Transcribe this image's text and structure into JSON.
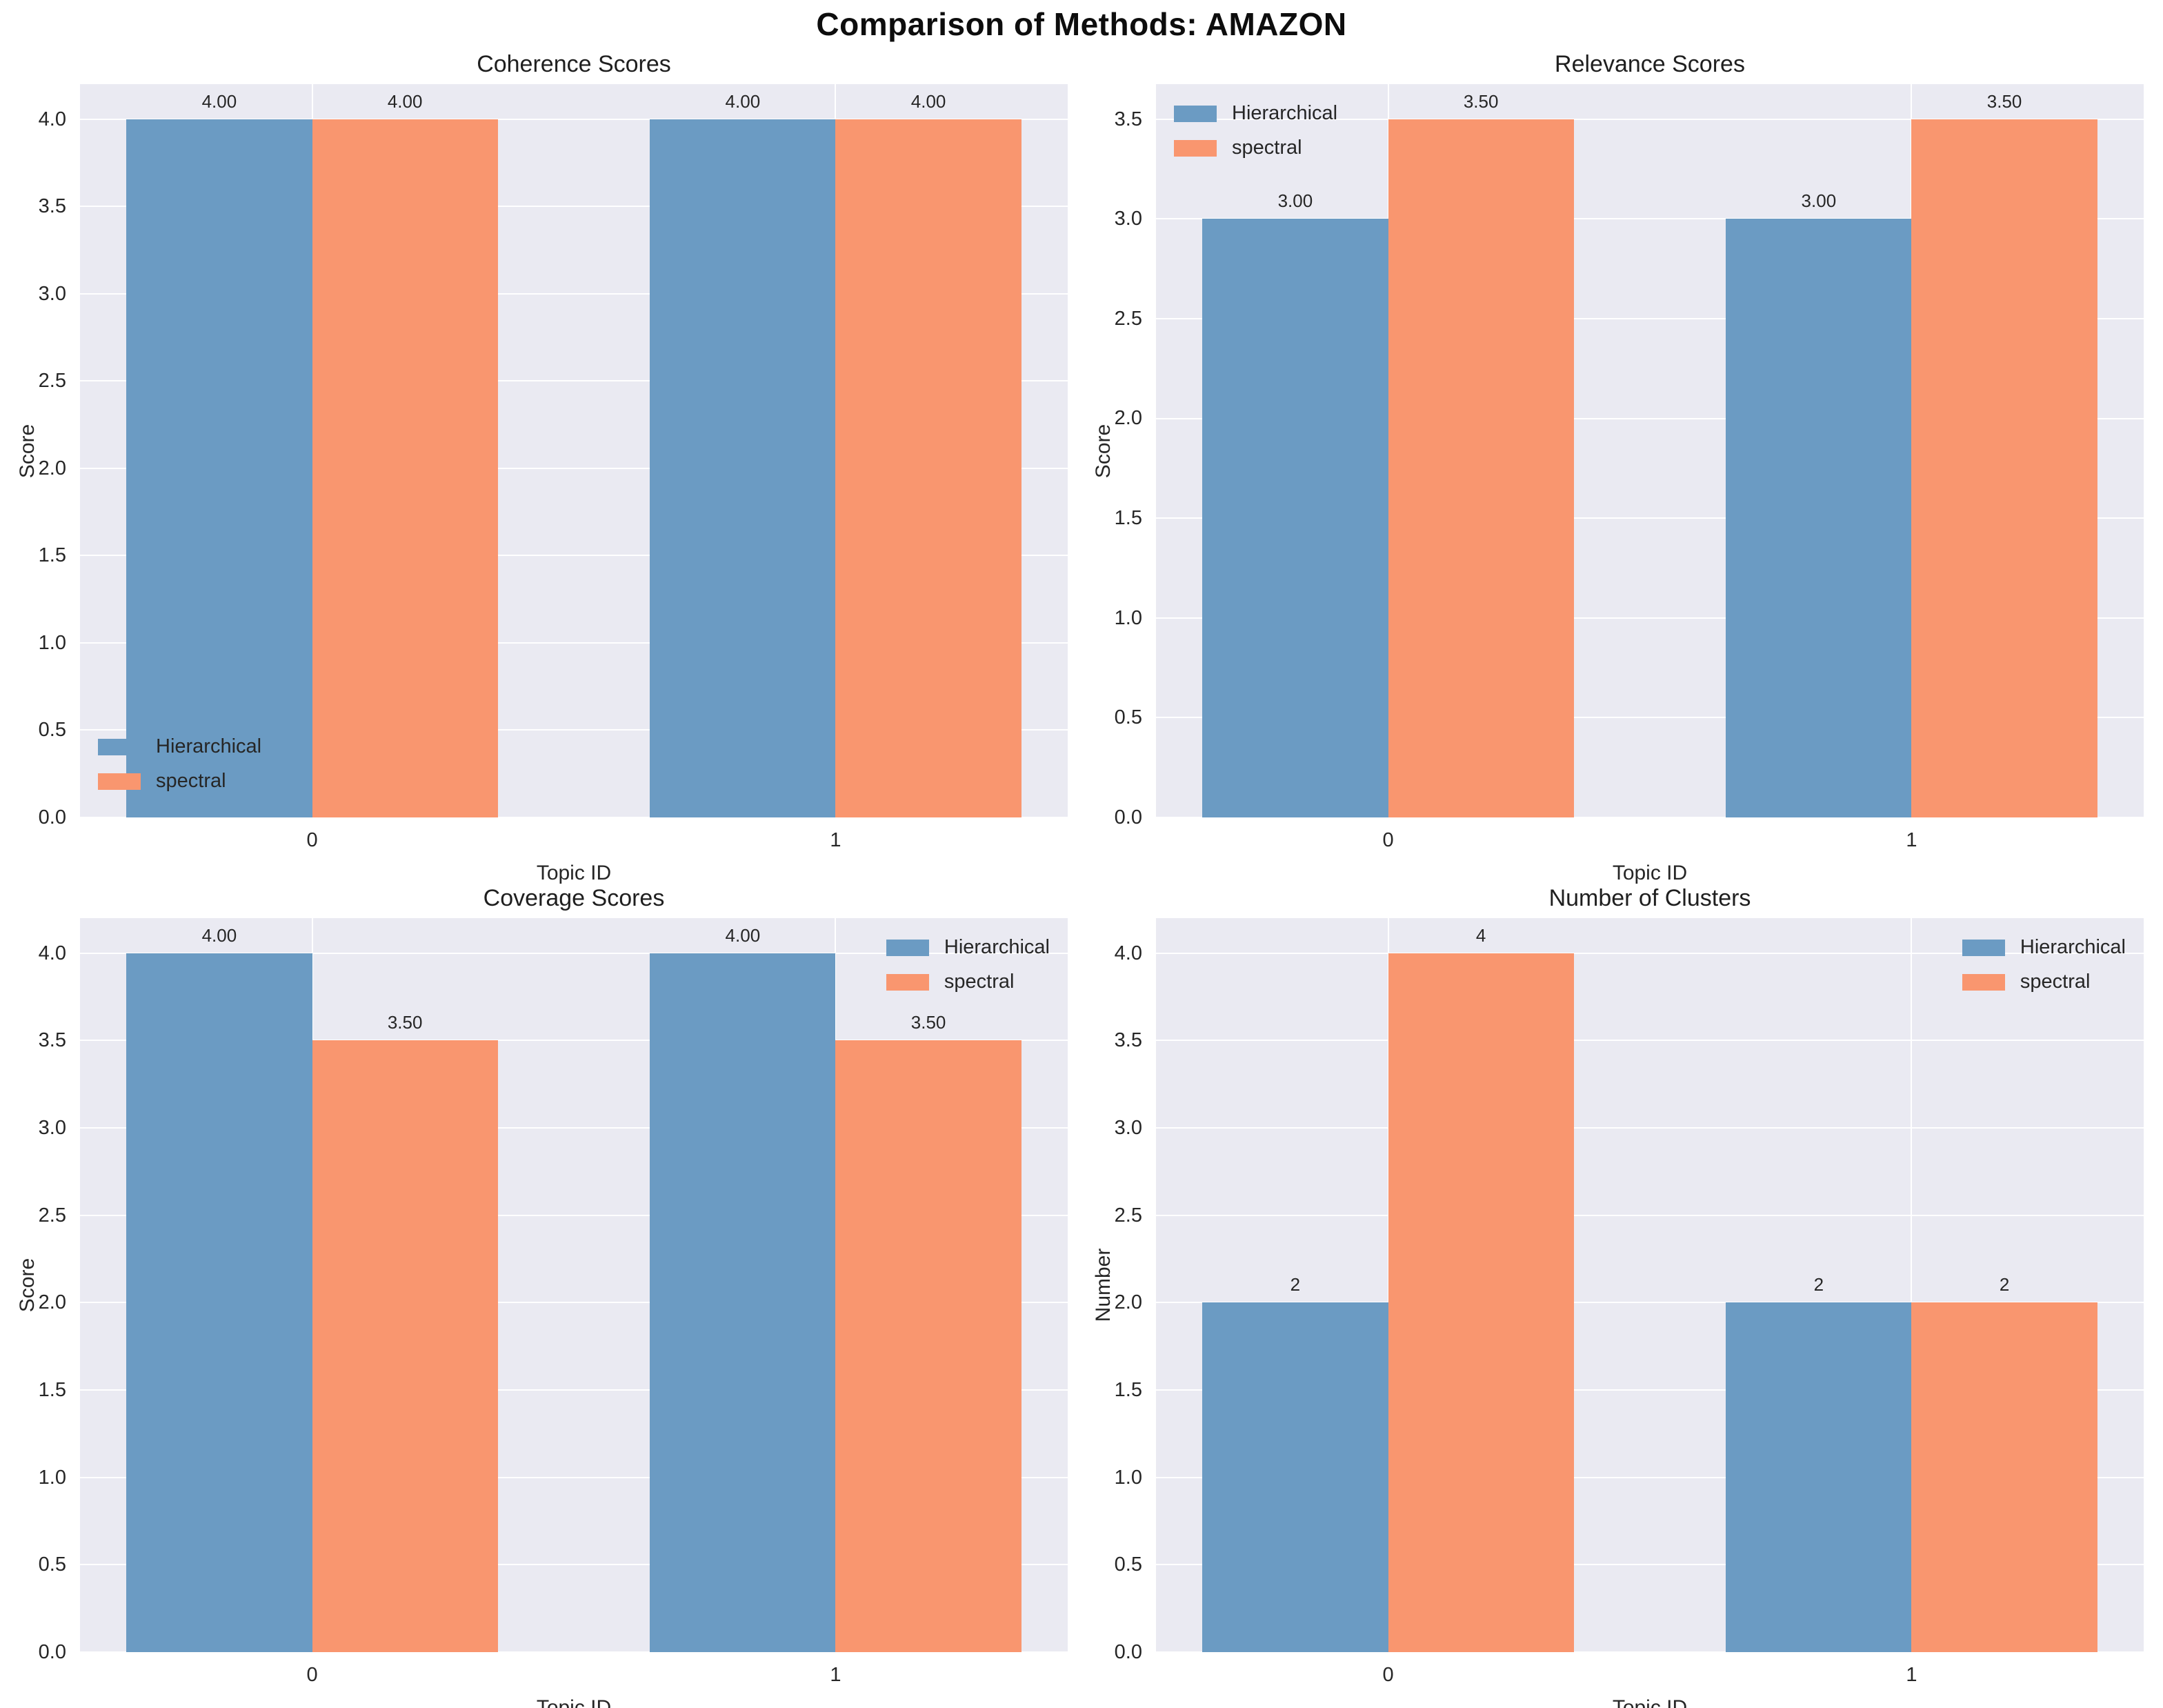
{
  "figure_title": "Comparison of Methods: AMAZON",
  "colors": {
    "hierarchical": "#6B9BC3",
    "spectral": "#F9966F",
    "plot_background": "#EAEAF2",
    "grid": "#FFFFFF",
    "text": "#262626"
  },
  "chart_data": [
    {
      "type": "bar",
      "title": "Coherence Scores",
      "xlabel": "Topic ID",
      "ylabel": "Score",
      "categories": [
        "0",
        "1"
      ],
      "series": [
        {
          "name": "Hierarchical",
          "values": [
            4.0,
            4.0
          ],
          "value_labels": [
            "4.00",
            "4.00"
          ]
        },
        {
          "name": "spectral",
          "values": [
            4.0,
            4.0
          ],
          "value_labels": [
            "4.00",
            "4.00"
          ]
        }
      ],
      "ylim": [
        0,
        4.2
      ],
      "yticks": [
        0.0,
        0.5,
        1.0,
        1.5,
        2.0,
        2.5,
        3.0,
        3.5,
        4.0
      ],
      "ytick_labels": [
        "0.0",
        "0.5",
        "1.0",
        "1.5",
        "2.0",
        "2.5",
        "3.0",
        "3.5",
        "4.0"
      ],
      "legend_loc": "lower left",
      "grid": true
    },
    {
      "type": "bar",
      "title": "Relevance Scores",
      "xlabel": "Topic ID",
      "ylabel": "Score",
      "categories": [
        "0",
        "1"
      ],
      "series": [
        {
          "name": "Hierarchical",
          "values": [
            3.0,
            3.0
          ],
          "value_labels": [
            "3.00",
            "3.00"
          ]
        },
        {
          "name": "spectral",
          "values": [
            3.5,
            3.5
          ],
          "value_labels": [
            "3.50",
            "3.50"
          ]
        }
      ],
      "ylim": [
        0,
        3.675
      ],
      "yticks": [
        0.0,
        0.5,
        1.0,
        1.5,
        2.0,
        2.5,
        3.0,
        3.5
      ],
      "ytick_labels": [
        "0.0",
        "0.5",
        "1.0",
        "1.5",
        "2.0",
        "2.5",
        "3.0",
        "3.5"
      ],
      "legend_loc": "upper left",
      "grid": true
    },
    {
      "type": "bar",
      "title": "Coverage Scores",
      "xlabel": "Topic ID",
      "ylabel": "Score",
      "categories": [
        "0",
        "1"
      ],
      "series": [
        {
          "name": "Hierarchical",
          "values": [
            4.0,
            4.0
          ],
          "value_labels": [
            "4.00",
            "4.00"
          ]
        },
        {
          "name": "spectral",
          "values": [
            3.5,
            3.5
          ],
          "value_labels": [
            "3.50",
            "3.50"
          ]
        }
      ],
      "ylim": [
        0,
        4.2
      ],
      "yticks": [
        0.0,
        0.5,
        1.0,
        1.5,
        2.0,
        2.5,
        3.0,
        3.5,
        4.0
      ],
      "ytick_labels": [
        "0.0",
        "0.5",
        "1.0",
        "1.5",
        "2.0",
        "2.5",
        "3.0",
        "3.5",
        "4.0"
      ],
      "legend_loc": "upper right",
      "grid": true
    },
    {
      "type": "bar",
      "title": "Number of Clusters",
      "xlabel": "Topic ID",
      "ylabel": "Number",
      "categories": [
        "0",
        "1"
      ],
      "series": [
        {
          "name": "Hierarchical",
          "values": [
            2,
            2
          ],
          "value_labels": [
            "2",
            "2"
          ]
        },
        {
          "name": "spectral",
          "values": [
            4,
            2
          ],
          "value_labels": [
            "4",
            "2"
          ]
        }
      ],
      "ylim": [
        0,
        4.2
      ],
      "yticks": [
        0.0,
        0.5,
        1.0,
        1.5,
        2.0,
        2.5,
        3.0,
        3.5,
        4.0
      ],
      "ytick_labels": [
        "0.0",
        "0.5",
        "1.0",
        "1.5",
        "2.0",
        "2.5",
        "3.0",
        "3.5",
        "4.0"
      ],
      "legend_loc": "upper right",
      "grid": true
    }
  ]
}
